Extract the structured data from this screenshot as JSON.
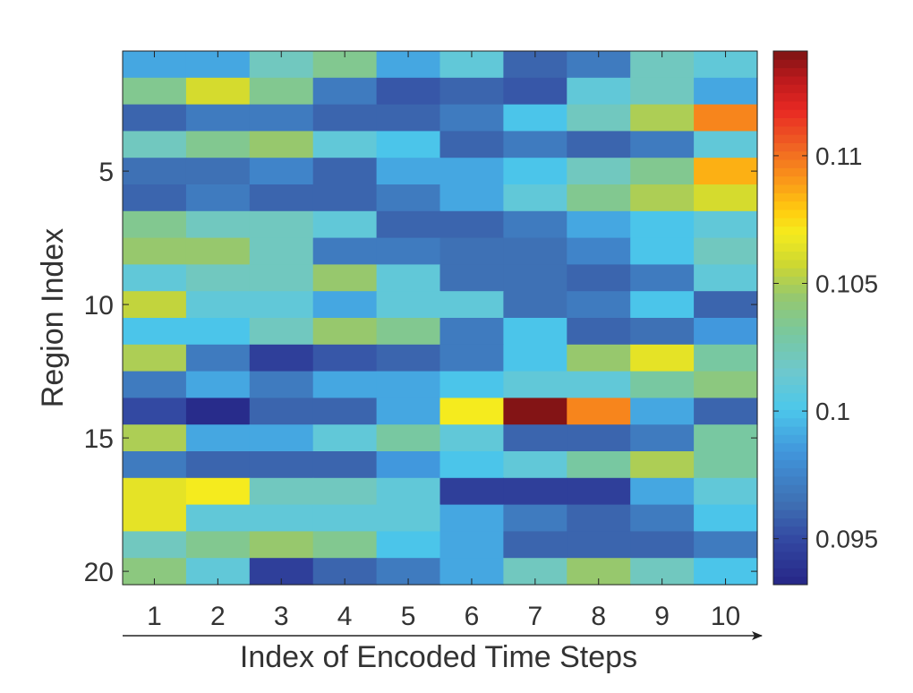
{
  "chart_data": {
    "type": "heatmap",
    "xlabel": "Index of Encoded Time Steps",
    "ylabel": "Region Index",
    "x_categories": [
      "1",
      "2",
      "3",
      "4",
      "5",
      "6",
      "7",
      "8",
      "9",
      "10"
    ],
    "y_categories": [
      "1",
      "2",
      "3",
      "4",
      "5",
      "6",
      "7",
      "8",
      "9",
      "10",
      "11",
      "12",
      "13",
      "14",
      "15",
      "16",
      "17",
      "18",
      "19",
      "20"
    ],
    "y_tick_labels": [
      "5",
      "10",
      "15",
      "20"
    ],
    "y_tick_rows": [
      5,
      10,
      15,
      20
    ],
    "colorbar": {
      "range": [
        0.0932,
        0.1141
      ],
      "tick_values": [
        0.095,
        0.1,
        0.105,
        0.11
      ],
      "tick_labels": [
        "0.095",
        "0.1",
        "0.105",
        "0.11"
      ],
      "colormap": "parula-jet"
    },
    "grid": false,
    "x_axis_arrow": true,
    "values": [
      [
        0.099,
        0.099,
        0.102,
        0.1035,
        0.099,
        0.101,
        0.096,
        0.097,
        0.102,
        0.101
      ],
      [
        0.1035,
        0.106,
        0.1035,
        0.097,
        0.0955,
        0.096,
        0.0955,
        0.101,
        0.102,
        0.099
      ],
      [
        0.096,
        0.097,
        0.097,
        0.096,
        0.096,
        0.097,
        0.1,
        0.102,
        0.105,
        0.1095
      ],
      [
        0.102,
        0.1035,
        0.1045,
        0.101,
        0.1,
        0.096,
        0.097,
        0.096,
        0.097,
        0.101
      ],
      [
        0.0965,
        0.0965,
        0.0975,
        0.096,
        0.099,
        0.099,
        0.1,
        0.102,
        0.1035,
        0.1085
      ],
      [
        0.096,
        0.097,
        0.096,
        0.096,
        0.097,
        0.099,
        0.101,
        0.1035,
        0.105,
        0.106
      ],
      [
        0.1035,
        0.102,
        0.102,
        0.101,
        0.096,
        0.096,
        0.097,
        0.099,
        0.1,
        0.101
      ],
      [
        0.1045,
        0.1045,
        0.102,
        0.097,
        0.097,
        0.0965,
        0.0965,
        0.0975,
        0.1,
        0.102
      ],
      [
        0.101,
        0.102,
        0.102,
        0.1045,
        0.101,
        0.0965,
        0.0965,
        0.096,
        0.097,
        0.101
      ],
      [
        0.1055,
        0.101,
        0.101,
        0.099,
        0.101,
        0.101,
        0.0965,
        0.097,
        0.1,
        0.096
      ],
      [
        0.1,
        0.1,
        0.102,
        0.1045,
        0.1035,
        0.097,
        0.1,
        0.096,
        0.0965,
        0.0985
      ],
      [
        0.105,
        0.097,
        0.0945,
        0.0955,
        0.096,
        0.097,
        0.1,
        0.1045,
        0.1065,
        0.103
      ],
      [
        0.097,
        0.099,
        0.097,
        0.099,
        0.099,
        0.1,
        0.101,
        0.101,
        0.103,
        0.104
      ],
      [
        0.095,
        0.0935,
        0.096,
        0.096,
        0.099,
        0.107,
        0.114,
        0.1095,
        0.099,
        0.096
      ],
      [
        0.105,
        0.099,
        0.099,
        0.101,
        0.103,
        0.101,
        0.096,
        0.096,
        0.097,
        0.103
      ],
      [
        0.097,
        0.096,
        0.096,
        0.096,
        0.0985,
        0.1,
        0.101,
        0.103,
        0.105,
        0.103
      ],
      [
        0.1065,
        0.107,
        0.102,
        0.102,
        0.101,
        0.0945,
        0.0945,
        0.0945,
        0.099,
        0.101
      ],
      [
        0.1065,
        0.101,
        0.101,
        0.101,
        0.101,
        0.099,
        0.097,
        0.096,
        0.097,
        0.1
      ],
      [
        0.102,
        0.1035,
        0.1045,
        0.1035,
        0.1,
        0.099,
        0.096,
        0.096,
        0.096,
        0.097
      ],
      [
        0.104,
        0.101,
        0.0945,
        0.096,
        0.097,
        0.099,
        0.102,
        0.1045,
        0.102,
        0.1
      ]
    ]
  }
}
